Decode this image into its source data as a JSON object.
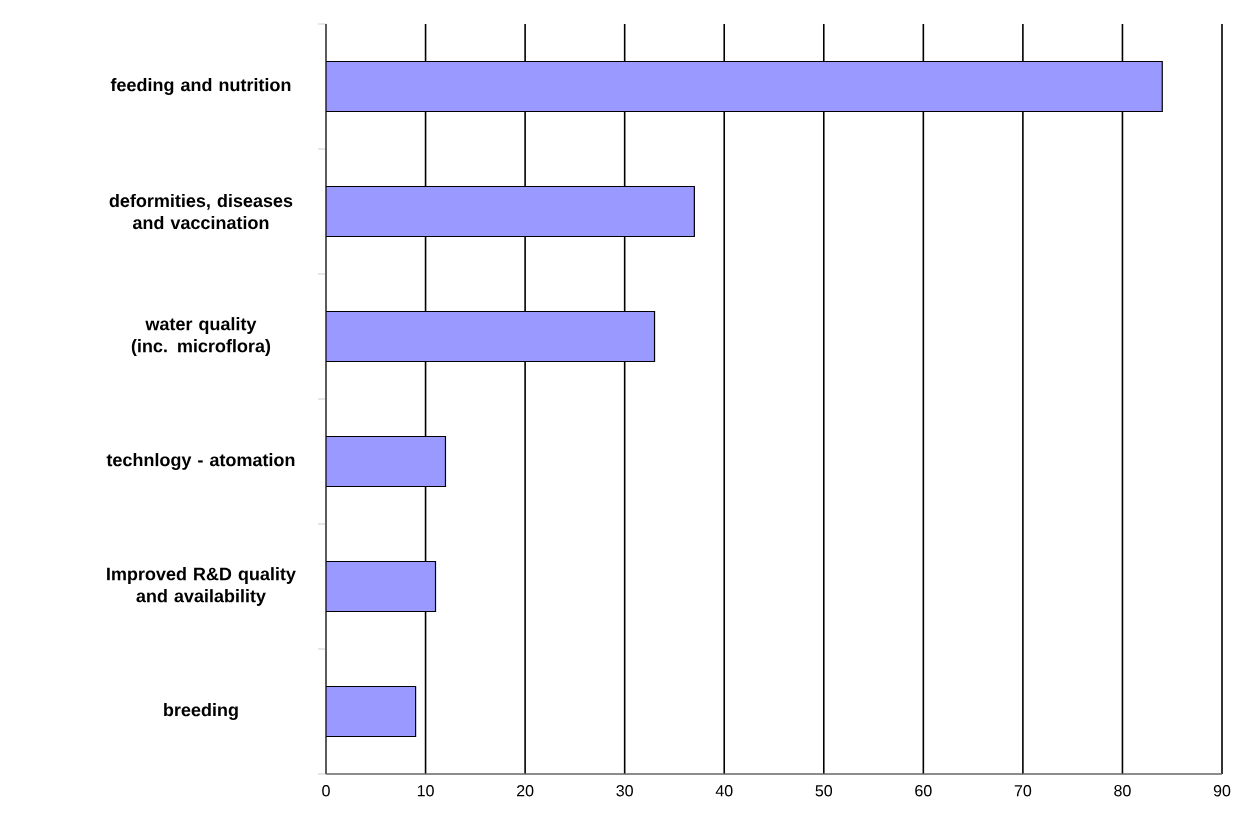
{
  "chart_data": {
    "type": "bar",
    "orientation": "horizontal",
    "categories": [
      "feeding and nutrition",
      "deformities, diseases and vaccination",
      "water quality (inc. microflora)",
      "technlogy - atomation",
      "Improved R&D quality and availability",
      "breeding"
    ],
    "values": [
      84,
      37,
      33,
      12,
      11,
      9
    ],
    "color": "#9999ff",
    "xlim": [
      0,
      90
    ],
    "xticks": [
      0,
      10,
      20,
      30,
      40,
      50,
      60,
      70,
      80,
      90
    ],
    "grid": "x"
  }
}
